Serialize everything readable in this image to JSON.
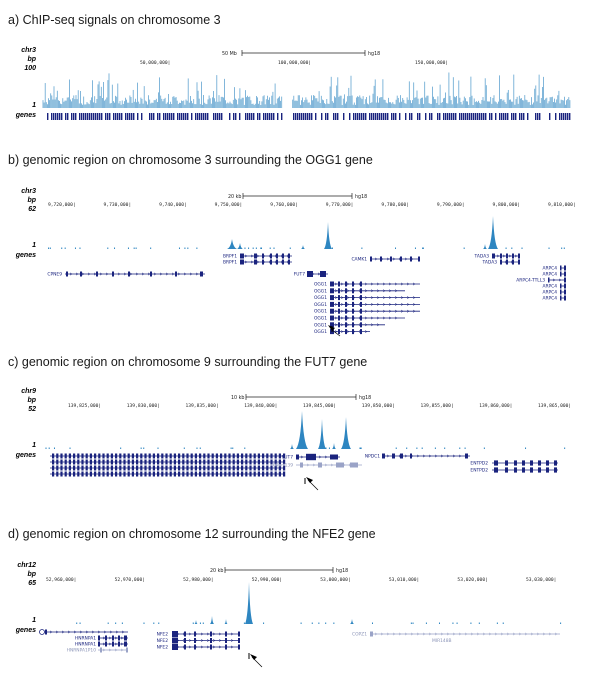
{
  "panels": [
    {
      "title": "a) ChIP-seq signals on chromosome 3",
      "chrom": "chr3",
      "bp": "bp",
      "ymax": "100",
      "ymin": "1",
      "genes_label": "genes",
      "scale_text": "50 Mb",
      "assembly": "hg18",
      "ticks": [
        "50,000,000|",
        "100,000,000|",
        "150,000,000|"
      ]
    },
    {
      "title": "b) genomic region on chromosome 3 surrounding the OGG1 gene",
      "chrom": "chr3",
      "bp": "bp",
      "ymax": "62",
      "ymin": "1",
      "genes_label": "genes",
      "scale_text": "20 kb",
      "assembly": "hg18",
      "ticks": [
        "9,720,000|",
        "9,730,000|",
        "9,740,000|",
        "9,750,000|",
        "9,760,000|",
        "9,770,000|",
        "9,780,000|",
        "9,790,000|",
        "9,800,000|",
        "9,810,000|"
      ],
      "genes": [
        "CPNE9",
        "BRPF1",
        "BRPF1",
        "FUT7",
        "CAMK1",
        "OGG1",
        "OGG1",
        "OGG1",
        "OGG1",
        "OGG1",
        "OGG1",
        "OGG1",
        "OGG1",
        "TADA3",
        "TADA3",
        "ARPC4",
        "ARPC4",
        "ARPC4-TTLL3",
        "ARPC4",
        "ARPC4",
        "ARPC4"
      ]
    },
    {
      "title": "c) genomic region on chromosome 9 surrounding the FUT7 gene",
      "chrom": "chr9",
      "bp": "bp",
      "ymax": "52",
      "ymin": "1",
      "genes_label": "genes",
      "scale_text": "10 kb",
      "assembly": "hg18",
      "ticks": [
        "139,825,000|",
        "139,830,000|",
        "139,835,000|",
        "139,840,000|",
        "139,845,000|",
        "139,850,000|",
        "139,855,000|",
        "139,860,000|",
        "139,865,000|"
      ],
      "genes": [
        "FUT7",
        "C9orf139",
        "NPDC1",
        "ENTPD2",
        "ENTPD2"
      ]
    },
    {
      "title": "d) genomic region on chromosome 12 surrounding the NFE2 gene",
      "chrom": "chr12",
      "bp": "bp",
      "ymax": "65",
      "ymin": "1",
      "genes_label": "genes",
      "scale_text": "20 kb",
      "assembly": "hg18",
      "ticks": [
        "52,960,000|",
        "52,970,000|",
        "52,980,000|",
        "52,990,000|",
        "53,000,000|",
        "53,010,000|",
        "53,020,000|",
        "53,030,000|"
      ],
      "genes": [
        "HNRNPA1",
        "HNRNPA1",
        "HNRNPA1P10",
        "NFE2",
        "NFE2",
        "NFE2",
        "COPZ1",
        "MIR148B"
      ]
    }
  ],
  "colors": {
    "signal": "#2e86c1",
    "gene": "#1a237e",
    "gene_faint": "#9aa3c7"
  }
}
